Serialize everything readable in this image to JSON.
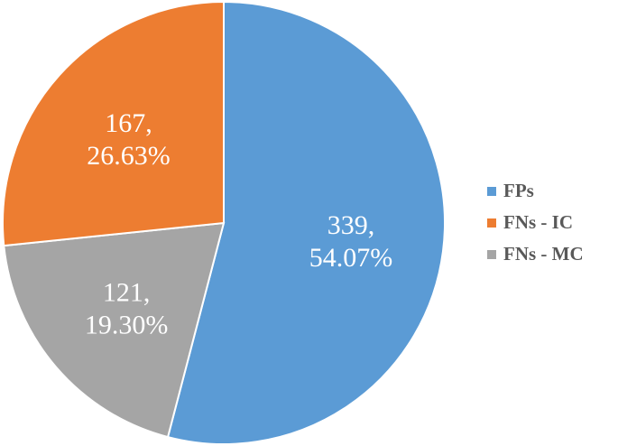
{
  "chart_data": {
    "type": "pie",
    "slices": [
      {
        "name": "FPs",
        "value": 339,
        "label_value": "339,",
        "label_percent": "54.07%",
        "color": "#5b9bd5"
      },
      {
        "name": "FNs - MC",
        "value": 121,
        "label_value": "121,",
        "label_percent": "19.30%",
        "color": "#a5a5a5"
      },
      {
        "name": "FNs - IC",
        "value": 167,
        "label_value": "167,",
        "label_percent": "26.63%",
        "color": "#ed7d31"
      }
    ],
    "legend": [
      {
        "label": "FPs",
        "color": "#5b9bd5"
      },
      {
        "label": "FNs - IC",
        "color": "#ed7d31"
      },
      {
        "label": "FNs - MC",
        "color": "#a5a5a5"
      }
    ],
    "legend_position": "right"
  }
}
